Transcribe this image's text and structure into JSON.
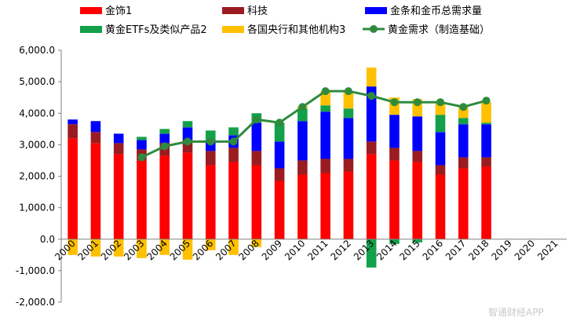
{
  "chart_data": {
    "type": "bar",
    "stacked": true,
    "categories": [
      "2000",
      "2001",
      "2002",
      "2003",
      "2004",
      "2005",
      "2006",
      "2007",
      "2008",
      "2009",
      "2010",
      "2011",
      "2012",
      "2013",
      "2014",
      "2015",
      "2016",
      "2017",
      "2018",
      "2019",
      "2020",
      "2021"
    ],
    "ylim": [
      -2000,
      6000
    ],
    "yticks": [
      {
        "value": 6000,
        "label": "6,000.0"
      },
      {
        "value": 5000,
        "label": "5,000.0"
      },
      {
        "value": 4000,
        "label": "4,000.0"
      },
      {
        "value": 3000,
        "label": "3,000.0"
      },
      {
        "value": 2000,
        "label": "2,000.0"
      },
      {
        "value": 1000,
        "label": "1,000.0"
      },
      {
        "value": 0,
        "label": "0.0"
      },
      {
        "value": -1000,
        "label": "-1,000.0"
      },
      {
        "value": -2000,
        "label": "-2,000.0"
      }
    ],
    "series": [
      {
        "name": "金饰1",
        "key": "jewelry",
        "color": "#ff0000",
        "values": [
          3200,
          3050,
          2700,
          2500,
          2650,
          2750,
          2350,
          2450,
          2350,
          1850,
          2050,
          2100,
          2150,
          2700,
          2500,
          2450,
          2050,
          2250,
          2300,
          null,
          null,
          null
        ]
      },
      {
        "name": "科技",
        "key": "tech",
        "color": "#9a1c20",
        "values": [
          450,
          350,
          350,
          350,
          400,
          400,
          450,
          450,
          450,
          400,
          450,
          450,
          400,
          400,
          400,
          350,
          300,
          350,
          300,
          null,
          null,
          null
        ]
      },
      {
        "name": "金条和金币总需求量",
        "key": "bars_coins",
        "color": "#0000ff",
        "values": [
          150,
          350,
          300,
          300,
          300,
          400,
          350,
          400,
          900,
          850,
          1250,
          1500,
          1300,
          1750,
          1050,
          1100,
          1050,
          1050,
          1050,
          null,
          null,
          null
        ]
      },
      {
        "name": "黄金ETFs及类似产品2",
        "key": "etf",
        "color": "#13a04a",
        "values": [
          0,
          0,
          0,
          100,
          150,
          200,
          300,
          250,
          300,
          600,
          400,
          200,
          300,
          -900,
          -150,
          -100,
          550,
          200,
          50,
          null,
          null,
          null
        ]
      },
      {
        "name": "各国央行和其他机构3",
        "key": "central_banks",
        "color": "#ffc000",
        "values": [
          -500,
          -550,
          -550,
          -600,
          -500,
          -650,
          -350,
          -500,
          -250,
          0,
          80,
          450,
          550,
          600,
          550,
          550,
          400,
          350,
          650,
          null,
          null,
          null
        ]
      }
    ],
    "line": {
      "name": "黄金需求（制造基础）",
      "color": "#2e8b3e",
      "start_index": 3,
      "values": [
        null,
        null,
        null,
        2600,
        2950,
        3100,
        3100,
        3100,
        3800,
        3700,
        4200,
        4700,
        4700,
        4550,
        4350,
        4350,
        4350,
        4200,
        4400,
        null,
        null,
        null
      ]
    },
    "watermark": "智通财经APP"
  }
}
